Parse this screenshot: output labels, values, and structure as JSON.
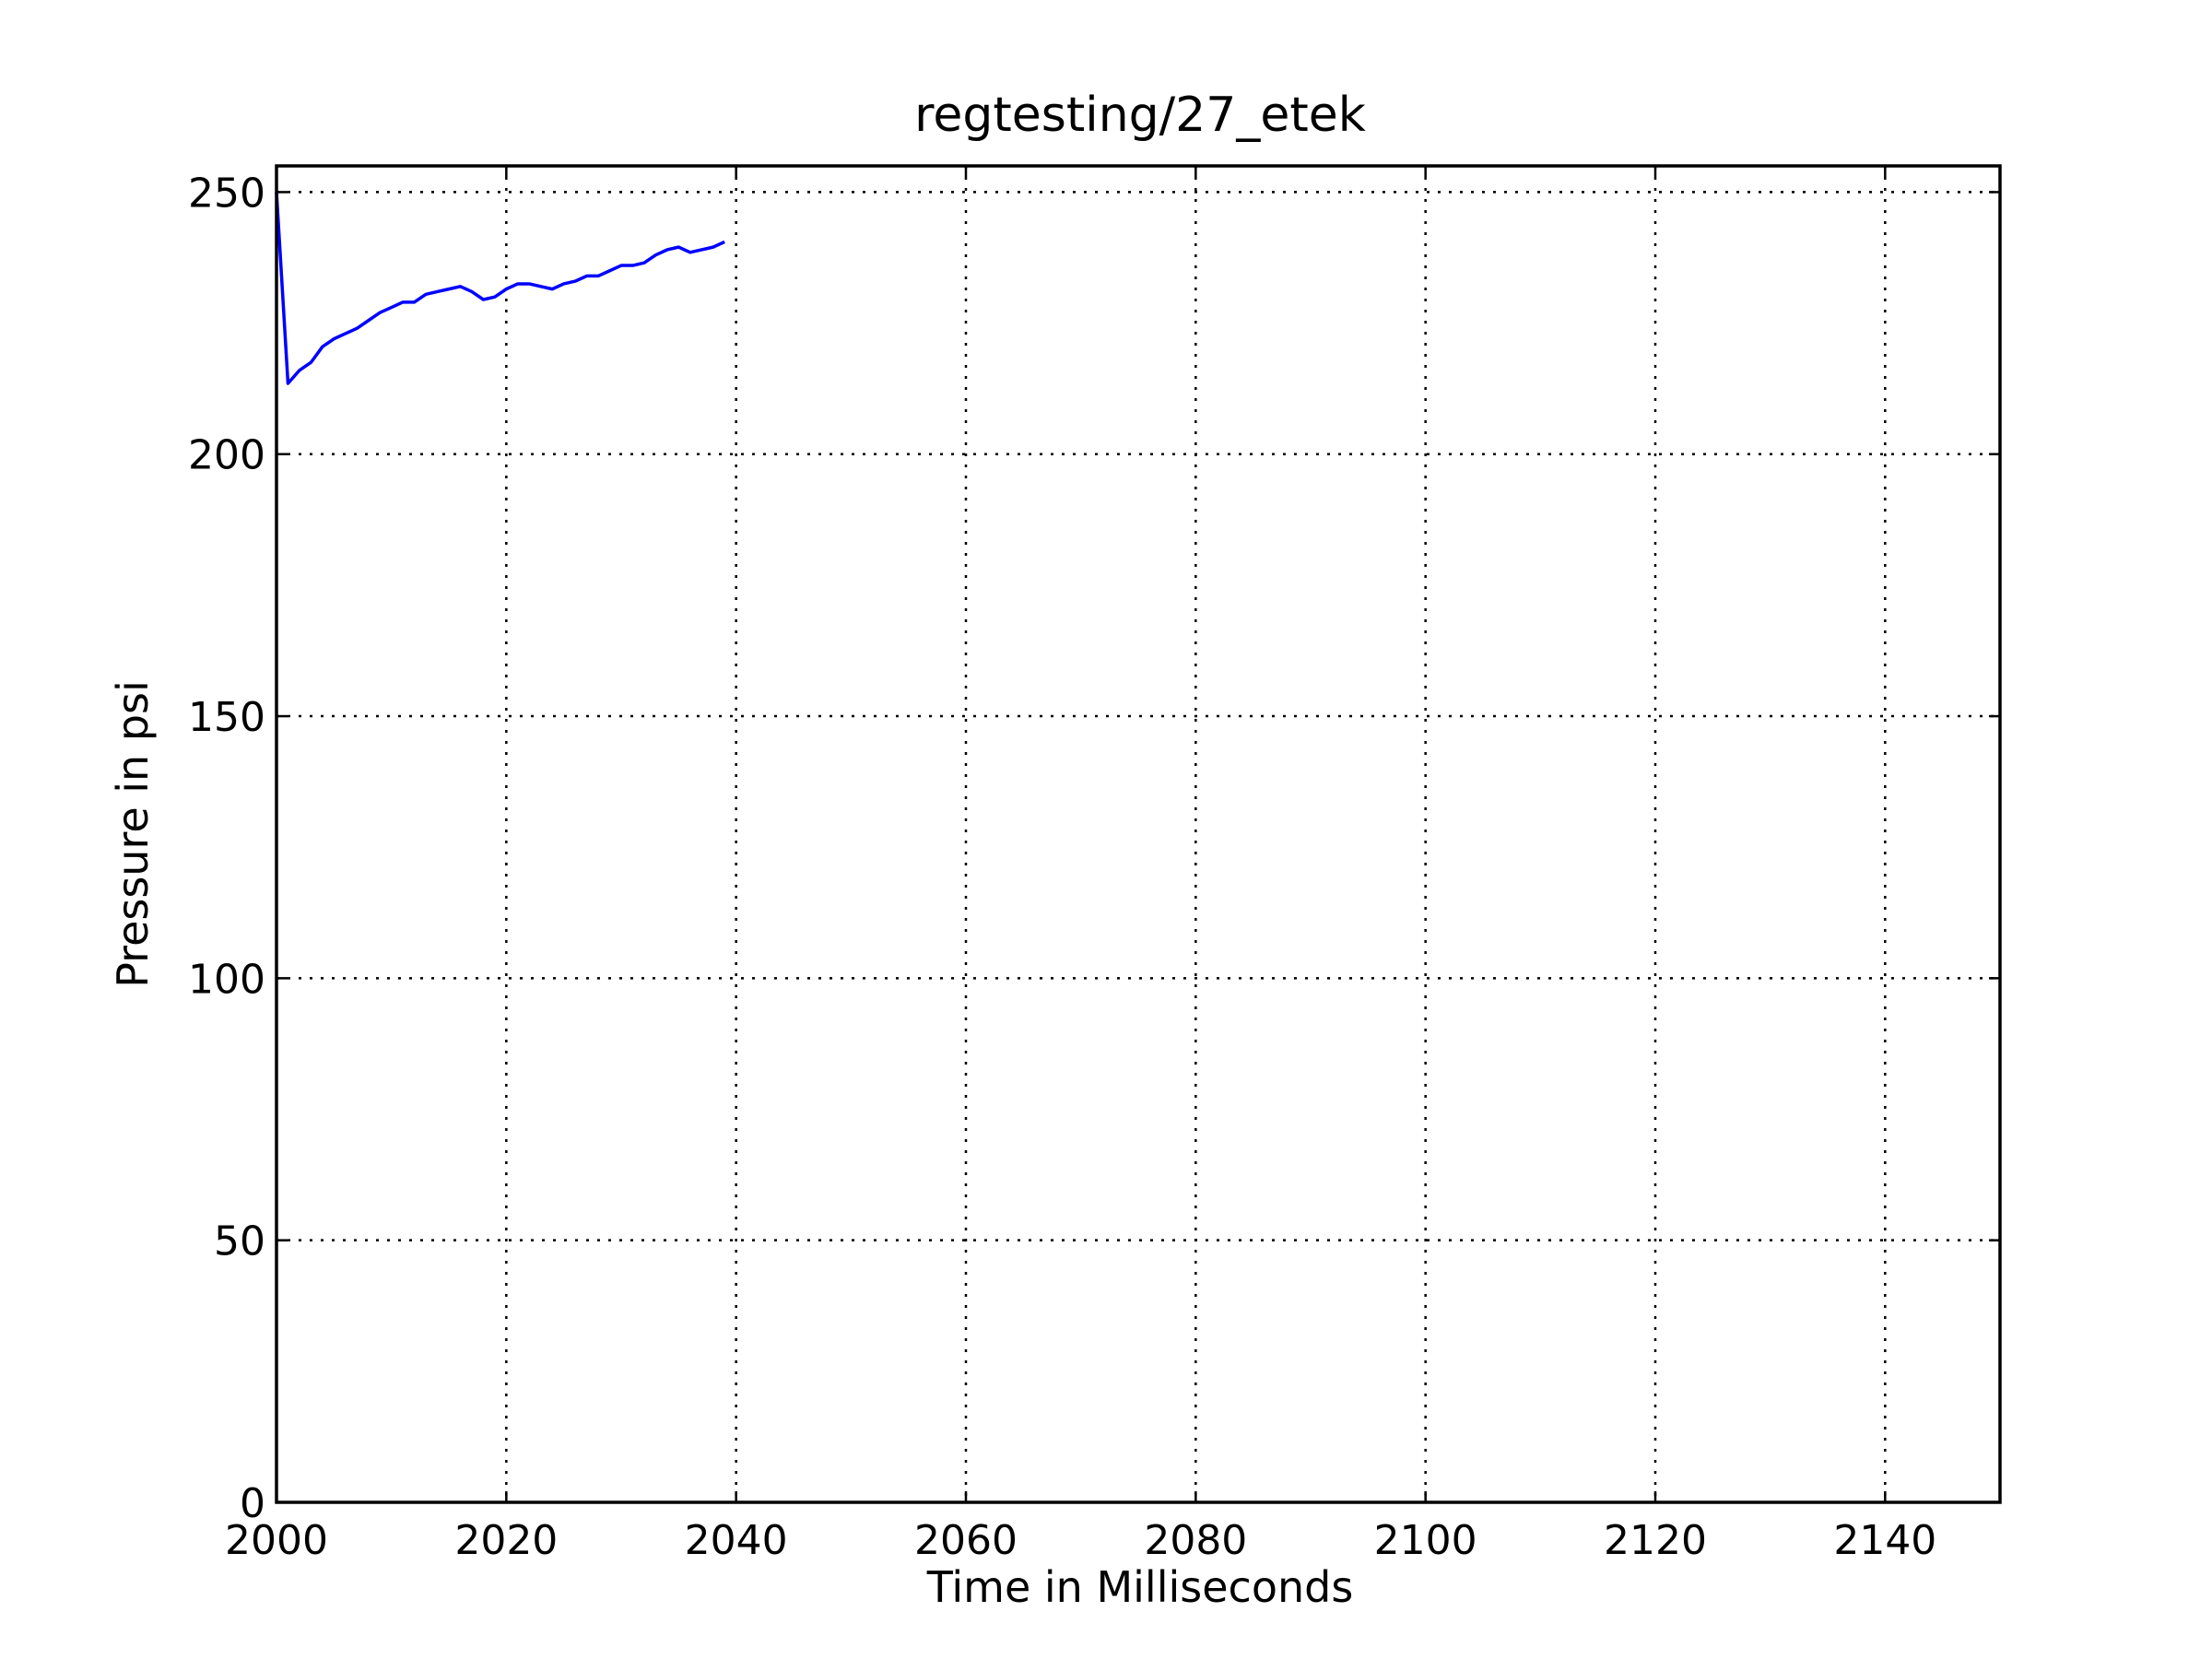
{
  "chart_data": {
    "type": "line",
    "title": "regtesting/27_etek",
    "xlabel": "Time in Milliseconds",
    "ylabel": "Pressure in psi",
    "xlim": [
      2000,
      2150
    ],
    "ylim": [
      0,
      255
    ],
    "xticks": [
      2000,
      2020,
      2040,
      2060,
      2080,
      2100,
      2120,
      2140
    ],
    "yticks": [
      0,
      50,
      100,
      150,
      200,
      250
    ],
    "xtick_labels": [
      "2000",
      "2020",
      "2040",
      "2060",
      "2080",
      "2100",
      "2120",
      "2140"
    ],
    "ytick_labels": [
      "0",
      "50",
      "100",
      "150",
      "200",
      "250"
    ],
    "grid": true,
    "grid_style": "dotted",
    "legend": "none",
    "line_color": "#0000ff",
    "series": [
      {
        "x": [
          2000,
          2001,
          2002,
          2003,
          2004,
          2005,
          2006,
          2007,
          2008,
          2009,
          2010,
          2011,
          2012,
          2013,
          2014,
          2015,
          2016,
          2017,
          2018,
          2019,
          2020,
          2021,
          2022,
          2023,
          2024,
          2025,
          2026,
          2027,
          2028,
          2029,
          2030,
          2031,
          2032,
          2033,
          2034,
          2035,
          2036,
          2037,
          2038,
          2039
        ],
        "y": [
          250,
          213.5,
          216,
          217.5,
          220.5,
          222,
          223,
          224,
          225.5,
          227,
          228,
          229,
          229,
          230.5,
          231,
          231.5,
          232,
          231,
          229.5,
          230,
          231.5,
          232.5,
          232.5,
          232,
          231.5,
          232.5,
          233,
          234,
          234,
          235,
          236,
          236,
          236.5,
          238,
          239,
          239.5,
          238.5,
          239,
          239.5,
          240.5
        ]
      }
    ]
  }
}
